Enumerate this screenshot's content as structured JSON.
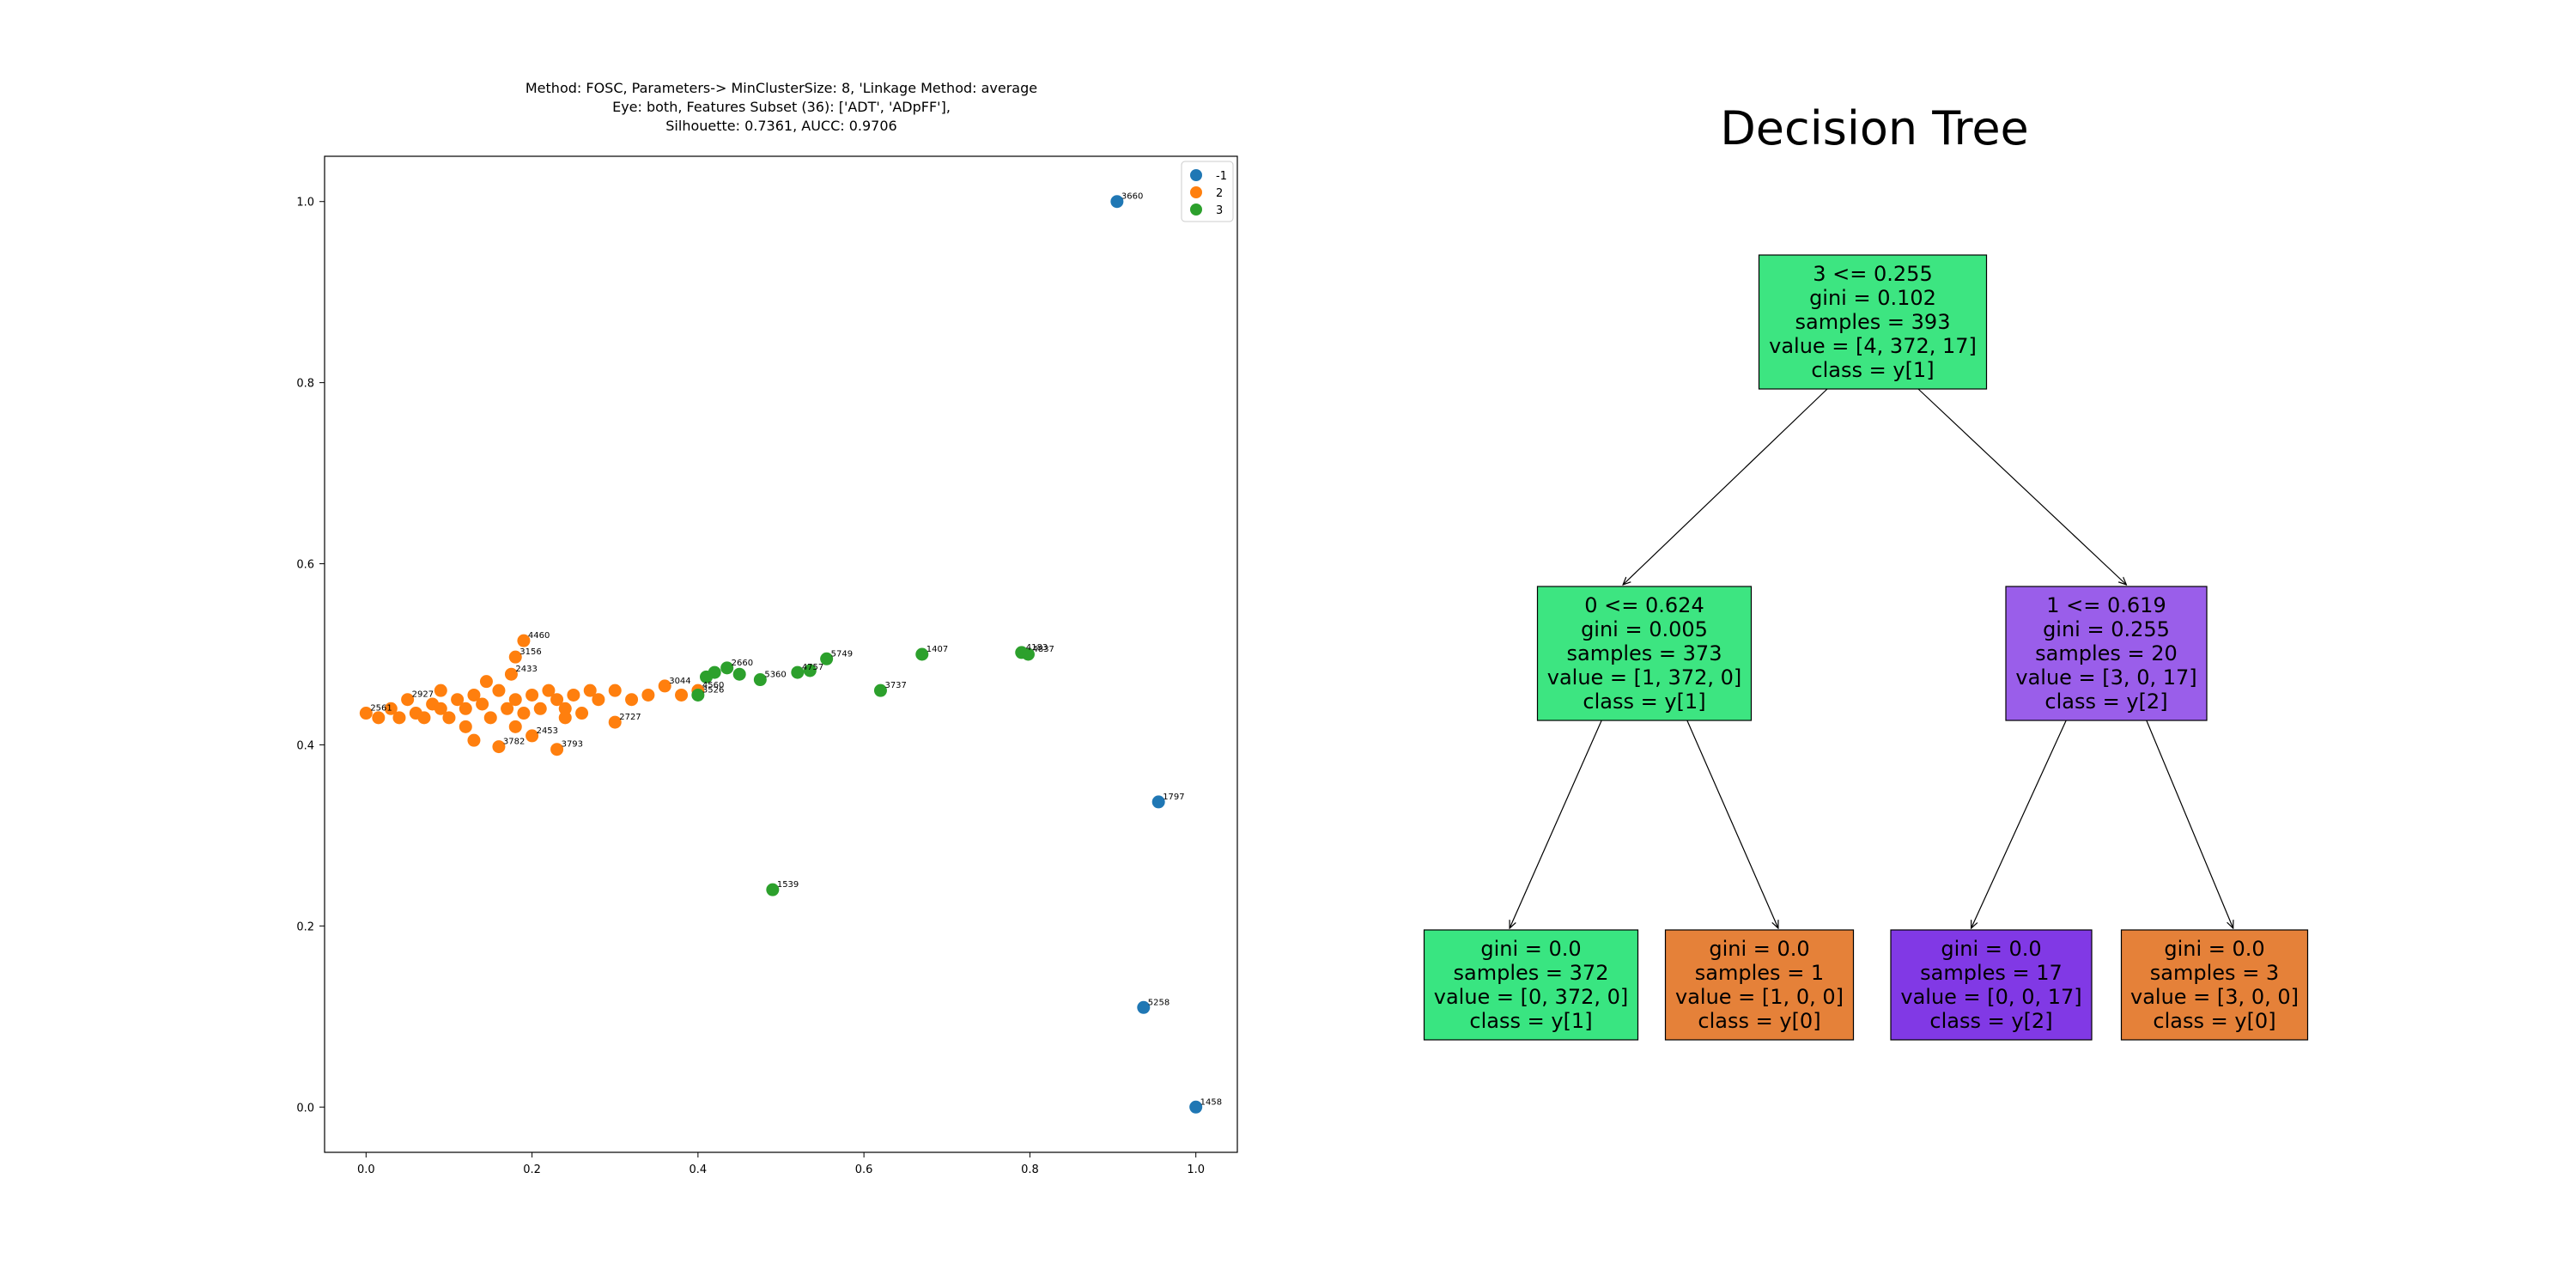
{
  "chart_data": [
    {
      "type": "scatter",
      "title_lines": [
        "Method: FOSC, Parameters-> MinClusterSize: 8, 'Linkage Method: average",
        "Eye: both, Features Subset (36): ['ADT', 'ADpFF'],",
        "Silhouette: 0.7361, AUCC: 0.9706"
      ],
      "xlim": [
        -0.05,
        1.05
      ],
      "ylim": [
        -0.05,
        1.05
      ],
      "xticks": [
        "0.0",
        "0.2",
        "0.4",
        "0.6",
        "0.8",
        "1.0"
      ],
      "yticks": [
        "0.0",
        "0.2",
        "0.4",
        "0.6",
        "0.8",
        "1.0"
      ],
      "grid": false,
      "legend_position": "top-right",
      "series": [
        {
          "name": "-1",
          "color": "#1f77b4",
          "points": [
            {
              "x": 0.905,
              "y": 1.0,
              "label": "3660"
            },
            {
              "x": 0.955,
              "y": 0.337,
              "label": "1797"
            },
            {
              "x": 0.937,
              "y": 0.11,
              "label": "5258"
            },
            {
              "x": 1.0,
              "y": 0.0,
              "label": "1458"
            }
          ]
        },
        {
          "name": "2",
          "color": "#ff7f0e",
          "points": [
            {
              "x": 0.19,
              "y": 0.515,
              "label": "4460"
            },
            {
              "x": 0.18,
              "y": 0.497,
              "label": "3156"
            },
            {
              "x": 0.175,
              "y": 0.478,
              "label": "2433"
            },
            {
              "x": 0.23,
              "y": 0.395,
              "label": "3793"
            },
            {
              "x": 0.3,
              "y": 0.425,
              "label": "2727"
            },
            {
              "x": 0.13,
              "y": 0.405,
              "label": ""
            },
            {
              "x": 0.16,
              "y": 0.398,
              "label": "3782"
            },
            {
              "x": 0.2,
              "y": 0.41,
              "label": "2453"
            },
            {
              "x": 0.0,
              "y": 0.435,
              "label": "2561"
            },
            {
              "x": 0.015,
              "y": 0.43,
              "label": ""
            },
            {
              "x": 0.03,
              "y": 0.44,
              "label": ""
            },
            {
              "x": 0.04,
              "y": 0.43,
              "label": ""
            },
            {
              "x": 0.05,
              "y": 0.45,
              "label": "2927"
            },
            {
              "x": 0.06,
              "y": 0.435,
              "label": ""
            },
            {
              "x": 0.07,
              "y": 0.43,
              "label": ""
            },
            {
              "x": 0.08,
              "y": 0.445,
              "label": ""
            },
            {
              "x": 0.09,
              "y": 0.44,
              "label": ""
            },
            {
              "x": 0.1,
              "y": 0.43,
              "label": ""
            },
            {
              "x": 0.11,
              "y": 0.45,
              "label": ""
            },
            {
              "x": 0.12,
              "y": 0.44,
              "label": ""
            },
            {
              "x": 0.13,
              "y": 0.455,
              "label": ""
            },
            {
              "x": 0.14,
              "y": 0.445,
              "label": ""
            },
            {
              "x": 0.15,
              "y": 0.43,
              "label": ""
            },
            {
              "x": 0.16,
              "y": 0.46,
              "label": ""
            },
            {
              "x": 0.17,
              "y": 0.44,
              "label": ""
            },
            {
              "x": 0.18,
              "y": 0.45,
              "label": ""
            },
            {
              "x": 0.19,
              "y": 0.435,
              "label": ""
            },
            {
              "x": 0.2,
              "y": 0.455,
              "label": ""
            },
            {
              "x": 0.21,
              "y": 0.44,
              "label": ""
            },
            {
              "x": 0.22,
              "y": 0.46,
              "label": ""
            },
            {
              "x": 0.23,
              "y": 0.45,
              "label": ""
            },
            {
              "x": 0.24,
              "y": 0.44,
              "label": ""
            },
            {
              "x": 0.25,
              "y": 0.455,
              "label": ""
            },
            {
              "x": 0.26,
              "y": 0.435,
              "label": ""
            },
            {
              "x": 0.27,
              "y": 0.46,
              "label": ""
            },
            {
              "x": 0.28,
              "y": 0.45,
              "label": ""
            },
            {
              "x": 0.3,
              "y": 0.46,
              "label": ""
            },
            {
              "x": 0.32,
              "y": 0.45,
              "label": ""
            },
            {
              "x": 0.34,
              "y": 0.455,
              "label": ""
            },
            {
              "x": 0.36,
              "y": 0.465,
              "label": "3044"
            },
            {
              "x": 0.38,
              "y": 0.455,
              "label": ""
            },
            {
              "x": 0.4,
              "y": 0.46,
              "label": "4560"
            },
            {
              "x": 0.12,
              "y": 0.42,
              "label": ""
            },
            {
              "x": 0.18,
              "y": 0.42,
              "label": ""
            },
            {
              "x": 0.24,
              "y": 0.43,
              "label": ""
            },
            {
              "x": 0.09,
              "y": 0.46,
              "label": ""
            },
            {
              "x": 0.145,
              "y": 0.47,
              "label": ""
            }
          ]
        },
        {
          "name": "3",
          "color": "#2ca02c",
          "points": [
            {
              "x": 0.41,
              "y": 0.475,
              "label": ""
            },
            {
              "x": 0.42,
              "y": 0.48,
              "label": ""
            },
            {
              "x": 0.435,
              "y": 0.485,
              "label": "2660"
            },
            {
              "x": 0.45,
              "y": 0.478,
              "label": ""
            },
            {
              "x": 0.475,
              "y": 0.472,
              "label": "5360"
            },
            {
              "x": 0.52,
              "y": 0.48,
              "label": "4757"
            },
            {
              "x": 0.535,
              "y": 0.482,
              "label": ""
            },
            {
              "x": 0.555,
              "y": 0.495,
              "label": "5749"
            },
            {
              "x": 0.62,
              "y": 0.46,
              "label": "3737"
            },
            {
              "x": 0.67,
              "y": 0.5,
              "label": "1407"
            },
            {
              "x": 0.79,
              "y": 0.502,
              "label": "4183"
            },
            {
              "x": 0.798,
              "y": 0.5,
              "label": "4837"
            },
            {
              "x": 0.49,
              "y": 0.24,
              "label": "1539"
            },
            {
              "x": 0.4,
              "y": 0.455,
              "label": "3526"
            }
          ]
        }
      ]
    },
    {
      "type": "tree",
      "title": "Decision Tree",
      "nodes": [
        {
          "id": "n0",
          "lines": [
            "3 <= 0.255",
            "gini = 0.102",
            "samples = 393",
            "value = [4, 372, 17]",
            "class = y[1]"
          ],
          "fill": "#3de581"
        },
        {
          "id": "n1",
          "lines": [
            "0 <= 0.624",
            "gini = 0.005",
            "samples = 373",
            "value = [1, 372, 0]",
            "class = y[1]"
          ],
          "fill": "#3de581"
        },
        {
          "id": "n2",
          "lines": [
            "1 <= 0.619",
            "gini = 0.255",
            "samples = 20",
            "value = [3, 0, 17]",
            "class = y[2]"
          ],
          "fill": "#9a5eea"
        },
        {
          "id": "n3",
          "lines": [
            "gini = 0.0",
            "samples = 372",
            "value = [0, 372, 0]",
            "class = y[1]"
          ],
          "fill": "#39e581"
        },
        {
          "id": "n4",
          "lines": [
            "gini = 0.0",
            "samples = 1",
            "value = [1, 0, 0]",
            "class = y[0]"
          ],
          "fill": "#e58139"
        },
        {
          "id": "n5",
          "lines": [
            "gini = 0.0",
            "samples = 17",
            "value = [0, 0, 17]",
            "class = y[2]"
          ],
          "fill": "#8139e5"
        },
        {
          "id": "n6",
          "lines": [
            "gini = 0.0",
            "samples = 3",
            "value = [3, 0, 0]",
            "class = y[0]"
          ],
          "fill": "#e58139"
        }
      ],
      "edges": [
        [
          "n0",
          "n1"
        ],
        [
          "n0",
          "n2"
        ],
        [
          "n1",
          "n3"
        ],
        [
          "n1",
          "n4"
        ],
        [
          "n2",
          "n5"
        ],
        [
          "n2",
          "n6"
        ]
      ]
    }
  ]
}
